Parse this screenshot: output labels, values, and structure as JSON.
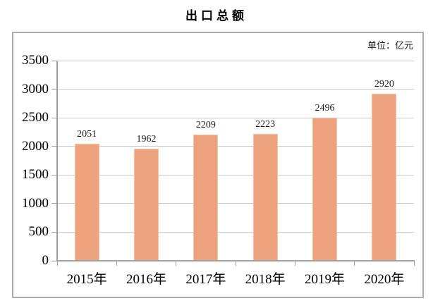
{
  "title": "出口总额",
  "unit_label": "单位：亿元",
  "colors": {
    "bar": "#EDA27E",
    "barBorder": "#F4C1A3",
    "grid": "#C9C9C9",
    "axis": "#A0A0A0",
    "frame": "#ACACAC",
    "text": "#000000"
  },
  "chart_data": {
    "type": "bar",
    "title": "出口总额",
    "unit": "单位：亿元",
    "categories": [
      "2015年",
      "2016年",
      "2017年",
      "2018年",
      "2019年",
      "2020年"
    ],
    "values": [
      2051,
      1962,
      2209,
      2223,
      2496,
      2920
    ],
    "xlabel": "",
    "ylabel": "",
    "ylim": [
      0,
      3500
    ],
    "yticks": [
      0,
      500,
      1000,
      1500,
      2000,
      2500,
      3000,
      3500
    ],
    "grid": true,
    "legend": "none",
    "bar_color": "#EDA27E",
    "data_labels_shown": true
  }
}
